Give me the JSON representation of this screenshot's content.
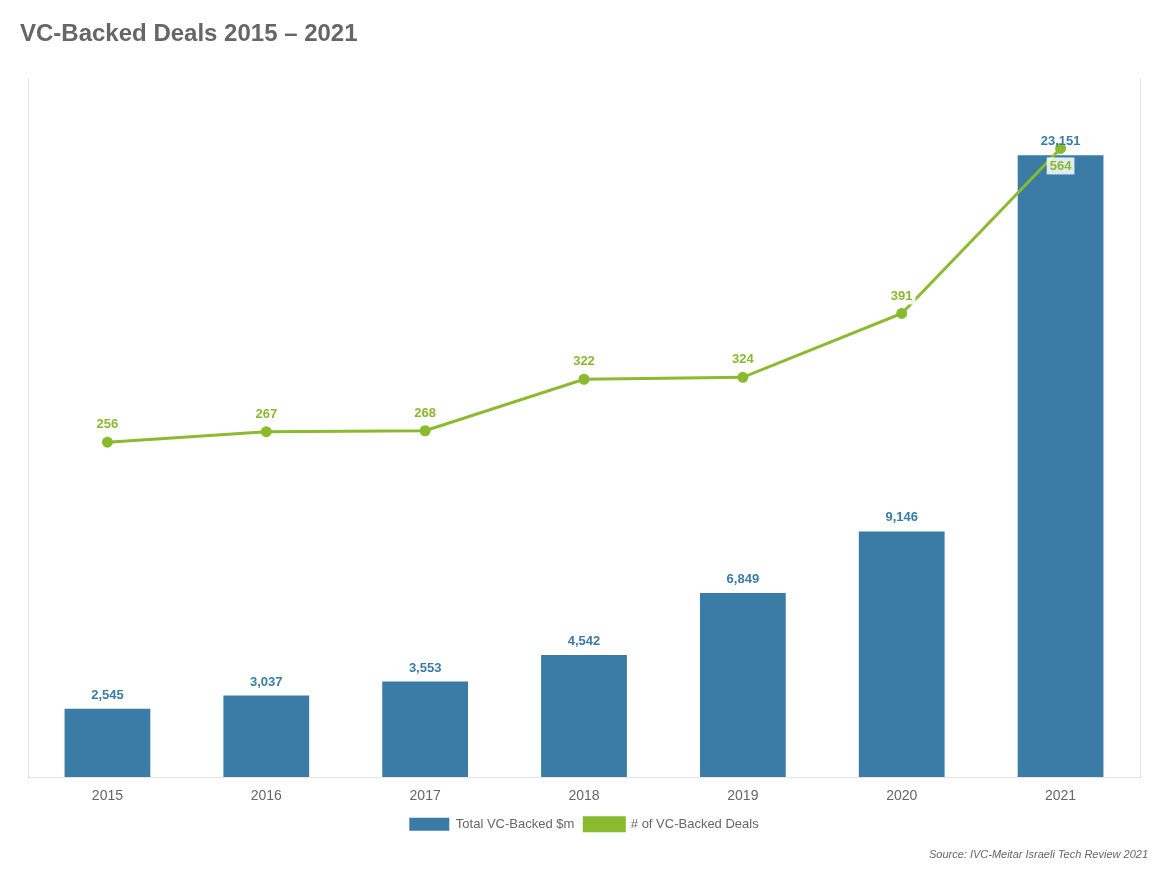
{
  "chart_data": {
    "type": "bar",
    "title": "VC-Backed Deals 2015 – 2021",
    "annotations": [
      "Source: IVC-Meitar Israeli Tech Review 2021"
    ],
    "categories": [
      "2015",
      "2016",
      "2017",
      "2018",
      "2019",
      "2020",
      "2021"
    ],
    "series": [
      {
        "name": "Total VC-Backed $m",
        "type": "bar",
        "color": "#3a7ca5",
        "values": [
          2545,
          3037,
          3553,
          4542,
          6849,
          9146,
          23151
        ],
        "value_labels": [
          "2,545",
          "3,037",
          "3,553",
          "4,542",
          "6,849",
          "9,146",
          "23,151"
        ]
      },
      {
        "name": "# of VC-Backed Deals",
        "type": "line",
        "color": "#8aba2e",
        "axis": "y2",
        "values": [
          256,
          267,
          268,
          322,
          324,
          391,
          564
        ]
      }
    ],
    "ylim": [
      0,
      26000
    ],
    "yticks": [],
    "y2lim": [
      -95,
      637
    ],
    "y2ticks": [],
    "grid": false,
    "legend": "bottom",
    "data_labels": true,
    "tick_labels": "x"
  }
}
